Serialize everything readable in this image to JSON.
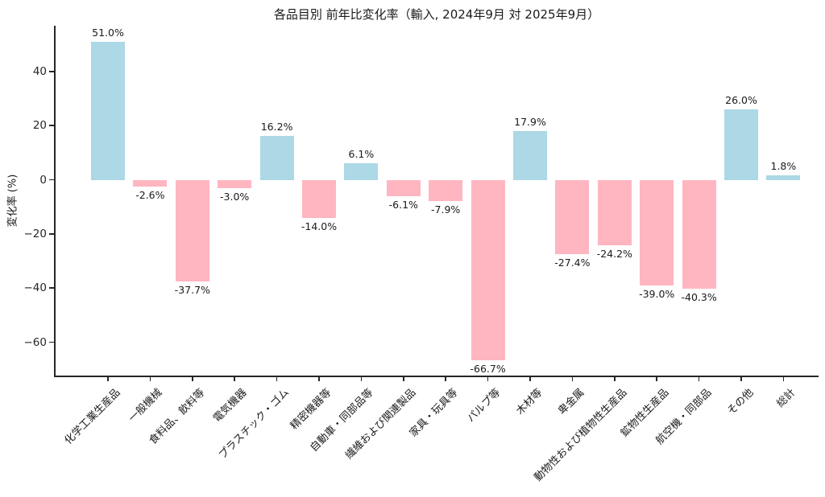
{
  "title": "各品目別 前年比変化率（輸入, 2024年9月 対 2025年9月）",
  "chart_data": {
    "type": "bar",
    "title": "各品目別 前年比変化率（輸入, 2024年9月 対 2025年9月）",
    "xlabel": "",
    "ylabel": "変化率 (%)",
    "categories": [
      "化学工業生産品",
      "一般機械",
      "食料品、飲料等",
      "電気機器",
      "プラスチック・ゴム",
      "精密機器等",
      "自動車・同部品等",
      "繊維および関連製品",
      "家具・玩具等",
      "パルプ等",
      "木材等",
      "卑金属",
      "動物性および植物性生産品",
      "鉱物性生産品",
      "航空機・同部品",
      "その他",
      "総計"
    ],
    "values": [
      51.0,
      -2.6,
      -37.7,
      -3.0,
      16.2,
      -14.0,
      6.1,
      -6.1,
      -7.9,
      -66.7,
      17.9,
      -27.4,
      -24.2,
      -39.0,
      -40.3,
      26.0,
      1.8
    ],
    "value_labels": [
      "51.0%",
      "-2.6%",
      "-37.7%",
      "-3.0%",
      "16.2%",
      "-14.0%",
      "6.1%",
      "-6.1%",
      "-7.9%",
      "-66.7%",
      "17.9%",
      "-27.4%",
      "-24.2%",
      "-39.0%",
      "-40.3%",
      "26.0%",
      "1.8%"
    ],
    "yticks": [
      40,
      20,
      0,
      -20,
      -40,
      -60
    ],
    "ytick_labels": [
      "40",
      "20",
      "0",
      "−20",
      "−40",
      "−60"
    ],
    "ylim": [
      -72.6,
      56.9
    ],
    "grid": false,
    "legend": null,
    "bar_color_positive": "#ADD8E6",
    "bar_color_negative": "#FFB6C1",
    "axis_color": "#262626",
    "text_color": "#1a1a1a"
  }
}
